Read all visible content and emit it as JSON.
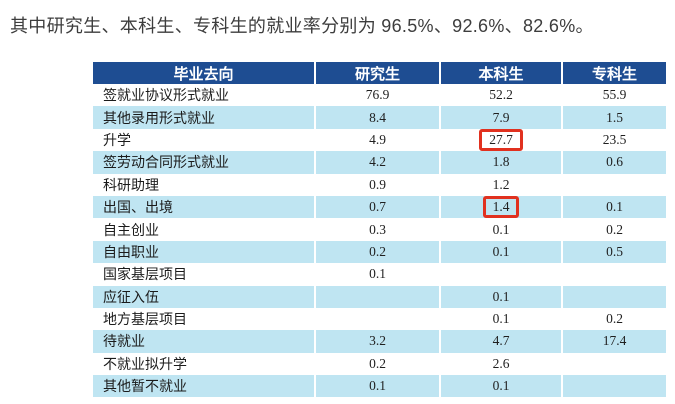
{
  "intro": {
    "text": "其中研究生、本科生、专科生的就业率分别为 96.5%、92.6%、82.6%。"
  },
  "table": {
    "columns": [
      "毕业去向",
      "研究生",
      "本科生",
      "专科生"
    ],
    "rows": [
      {
        "label": "签就业协议形式就业",
        "values": [
          "76.9",
          "52.2",
          "55.9"
        ],
        "highlight_col": null
      },
      {
        "label": "其他录用形式就业",
        "values": [
          "8.4",
          "7.9",
          "1.5"
        ],
        "highlight_col": null
      },
      {
        "label": "升学",
        "values": [
          "4.9",
          "27.7",
          "23.5"
        ],
        "highlight_col": 1
      },
      {
        "label": "签劳动合同形式就业",
        "values": [
          "4.2",
          "1.8",
          "0.6"
        ],
        "highlight_col": null
      },
      {
        "label": "科研助理",
        "values": [
          "0.9",
          "1.2",
          ""
        ],
        "highlight_col": null
      },
      {
        "label": "出国、出境",
        "values": [
          "0.7",
          "1.4",
          "0.1"
        ],
        "highlight_col": 1
      },
      {
        "label": "自主创业",
        "values": [
          "0.3",
          "0.1",
          "0.2"
        ],
        "highlight_col": null
      },
      {
        "label": "自由职业",
        "values": [
          "0.2",
          "0.1",
          "0.5"
        ],
        "highlight_col": null
      },
      {
        "label": "国家基层项目",
        "values": [
          "0.1",
          "",
          ""
        ],
        "highlight_col": null
      },
      {
        "label": "应征入伍",
        "values": [
          "",
          "0.1",
          ""
        ],
        "highlight_col": null
      },
      {
        "label": "地方基层项目",
        "values": [
          "",
          "0.1",
          "0.2"
        ],
        "highlight_col": null
      },
      {
        "label": "待就业",
        "values": [
          "3.2",
          "4.7",
          "17.4"
        ],
        "highlight_col": null
      },
      {
        "label": "不就业拟升学",
        "values": [
          "0.2",
          "2.6",
          ""
        ],
        "highlight_col": null
      },
      {
        "label": "其他暂不就业",
        "values": [
          "0.1",
          "0.1",
          ""
        ],
        "highlight_col": null
      }
    ]
  },
  "colors": {
    "header_bg": "#1e4d92",
    "alt_row_bg": "#bfe5f2",
    "highlight_border": "#e1311f",
    "intro_text": "#3d3d3d"
  }
}
